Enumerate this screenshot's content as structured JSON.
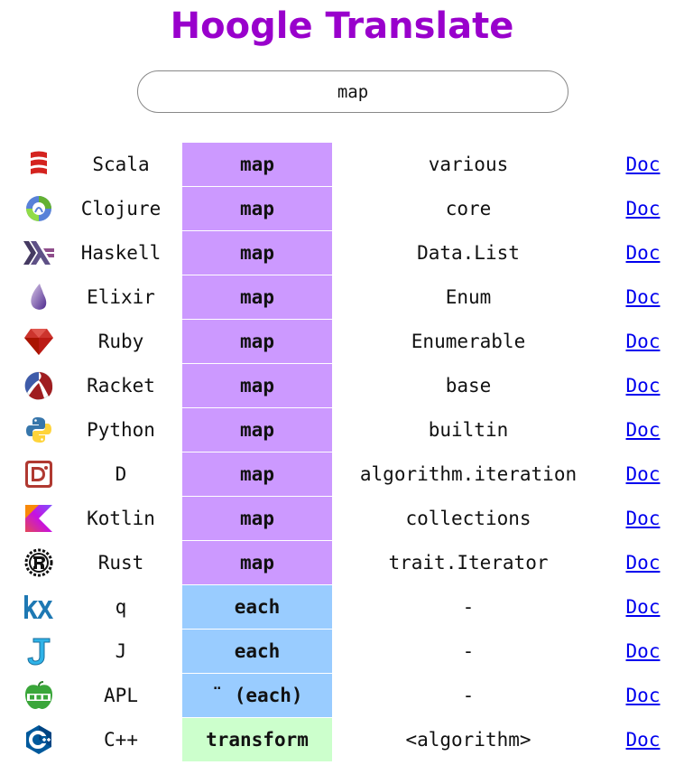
{
  "title": "Hoogle Translate",
  "search": {
    "value": "map"
  },
  "colors": {
    "title": "#9900cc",
    "map": "#cc99ff",
    "each": "#99ccff",
    "transform": "#ccffcc",
    "link": "#0000ee"
  },
  "rows": [
    {
      "icon": "scala-logo-icon",
      "language": "Scala",
      "function": "map",
      "module": "various",
      "doc": "Doc"
    },
    {
      "icon": "clojure-logo-icon",
      "language": "Clojure",
      "function": "map",
      "module": "core",
      "doc": "Doc"
    },
    {
      "icon": "haskell-logo-icon",
      "language": "Haskell",
      "function": "map",
      "module": "Data.List",
      "doc": "Doc"
    },
    {
      "icon": "elixir-logo-icon",
      "language": "Elixir",
      "function": "map",
      "module": "Enum",
      "doc": "Doc"
    },
    {
      "icon": "ruby-logo-icon",
      "language": "Ruby",
      "function": "map",
      "module": "Enumerable",
      "doc": "Doc"
    },
    {
      "icon": "racket-logo-icon",
      "language": "Racket",
      "function": "map",
      "module": "base",
      "doc": "Doc"
    },
    {
      "icon": "python-logo-icon",
      "language": "Python",
      "function": "map",
      "module": "builtin",
      "doc": "Doc"
    },
    {
      "icon": "d-logo-icon",
      "language": "D",
      "function": "map",
      "module": "algorithm.iteration",
      "doc": "Doc"
    },
    {
      "icon": "kotlin-logo-icon",
      "language": "Kotlin",
      "function": "map",
      "module": "collections",
      "doc": "Doc"
    },
    {
      "icon": "rust-logo-icon",
      "language": "Rust",
      "function": "map",
      "module": "trait.Iterator",
      "doc": "Doc"
    },
    {
      "icon": "q-kx-logo-icon",
      "language": "q",
      "function": "each",
      "module": "-",
      "doc": "Doc"
    },
    {
      "icon": "j-logo-icon",
      "language": "J",
      "function": "each",
      "module": "-",
      "doc": "Doc"
    },
    {
      "icon": "apl-logo-icon",
      "language": "APL",
      "function": "¨ (each)",
      "module": "-",
      "doc": "Doc"
    },
    {
      "icon": "cpp-logo-icon",
      "language": "C++",
      "function": "transform",
      "module": "<algorithm>",
      "doc": "Doc"
    }
  ]
}
